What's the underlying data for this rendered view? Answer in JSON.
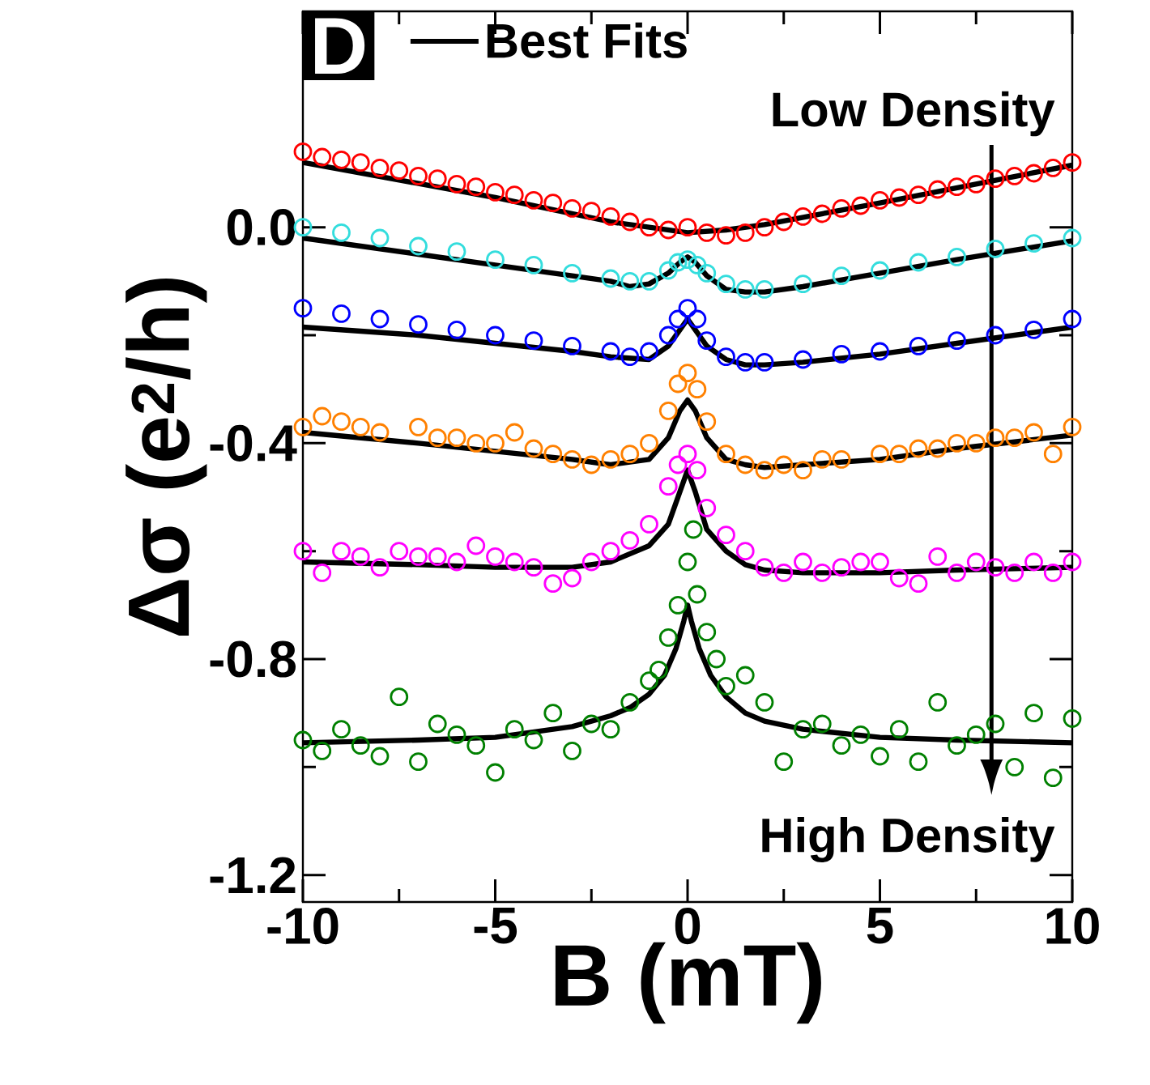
{
  "chart_data": {
    "type": "scatter",
    "xlabel": "B (mT)",
    "ylabel": "Δσ (e$^{2}$/h)",
    "xlim": [
      -10,
      10
    ],
    "ylim": [
      -1.25,
      0.4
    ],
    "xticks": [
      -10,
      -5,
      0,
      5,
      10
    ],
    "yticks": [
      {
        "value": 0,
        "label": "0.0"
      },
      {
        "value": -0.4,
        "label": "-0.4"
      },
      {
        "value": -0.8,
        "label": "-0.8"
      },
      {
        "value": -1.2,
        "label": "-1.2"
      }
    ],
    "legend": "top left",
    "annotations": [
      "D",
      "Low Density",
      "High Density"
    ],
    "series": [
      {
        "marker": "circle",
        "color": "#ff0000",
        "x": [
          -10,
          -9.5,
          -9,
          -8.5,
          -8,
          -7.5,
          -7,
          -6.5,
          -6,
          -5.5,
          -5,
          -4.5,
          -4,
          -3.5,
          -3,
          -2.5,
          -2,
          -1.5,
          -1,
          -0.5,
          0,
          0.5,
          1,
          1.5,
          2,
          2.5,
          3,
          3.5,
          4,
          4.5,
          5,
          5.5,
          6,
          6.5,
          7,
          7.5,
          8,
          8.5,
          9,
          9.5,
          10
        ],
        "values": [
          0.14,
          0.13,
          0.125,
          0.12,
          0.11,
          0.105,
          0.095,
          0.09,
          0.08,
          0.075,
          0.065,
          0.06,
          0.05,
          0.045,
          0.035,
          0.03,
          0.02,
          0.01,
          0.0,
          -0.005,
          0.0,
          -0.01,
          -0.015,
          -0.01,
          0.0,
          0.01,
          0.02,
          0.025,
          0.035,
          0.04,
          0.05,
          0.055,
          0.06,
          0.07,
          0.075,
          0.08,
          0.09,
          0.095,
          0.1,
          0.11,
          0.12
        ]
      },
      {
        "marker": "circle",
        "color": "#33dddd",
        "x": [
          -10,
          -9,
          -8,
          -7,
          -6,
          -5,
          -4,
          -3,
          -2,
          -1.5,
          -1,
          -0.5,
          -0.25,
          0,
          0.25,
          0.5,
          1,
          1.5,
          2,
          3,
          4,
          5,
          6,
          7,
          8,
          9,
          10
        ],
        "values": [
          0.0,
          -0.01,
          -0.02,
          -0.035,
          -0.045,
          -0.06,
          -0.07,
          -0.085,
          -0.095,
          -0.1,
          -0.1,
          -0.08,
          -0.065,
          -0.06,
          -0.07,
          -0.085,
          -0.105,
          -0.115,
          -0.115,
          -0.105,
          -0.09,
          -0.08,
          -0.065,
          -0.055,
          -0.04,
          -0.03,
          -0.02
        ]
      },
      {
        "marker": "circle",
        "color": "#0000ff",
        "x": [
          -10,
          -9,
          -8,
          -7,
          -6,
          -5,
          -4,
          -3,
          -2,
          -1.5,
          -1,
          -0.5,
          -0.25,
          0,
          0.25,
          0.5,
          1,
          1.5,
          2,
          3,
          4,
          5,
          6,
          7,
          8,
          9,
          10
        ],
        "values": [
          -0.15,
          -0.16,
          -0.17,
          -0.18,
          -0.19,
          -0.2,
          -0.21,
          -0.22,
          -0.23,
          -0.24,
          -0.23,
          -0.2,
          -0.17,
          -0.15,
          -0.17,
          -0.21,
          -0.24,
          -0.25,
          -0.25,
          -0.245,
          -0.235,
          -0.23,
          -0.22,
          -0.21,
          -0.2,
          -0.19,
          -0.17
        ]
      },
      {
        "marker": "circle",
        "color": "#ff8000",
        "x": [
          -10,
          -9.5,
          -9,
          -8.5,
          -8,
          -7,
          -6.5,
          -6,
          -5.5,
          -5,
          -4.5,
          -4,
          -3.5,
          -3,
          -2.5,
          -2,
          -1.5,
          -1,
          -0.5,
          -0.25,
          0,
          0.25,
          0.5,
          1,
          1.5,
          2,
          2.5,
          3,
          3.5,
          4,
          5,
          5.5,
          6,
          6.5,
          7,
          7.5,
          8,
          8.5,
          9,
          9.5,
          10
        ],
        "values": [
          -0.37,
          -0.35,
          -0.36,
          -0.37,
          -0.38,
          -0.37,
          -0.39,
          -0.39,
          -0.4,
          -0.4,
          -0.38,
          -0.41,
          -0.42,
          -0.43,
          -0.44,
          -0.43,
          -0.42,
          -0.4,
          -0.34,
          -0.29,
          -0.27,
          -0.3,
          -0.36,
          -0.42,
          -0.44,
          -0.45,
          -0.44,
          -0.45,
          -0.43,
          -0.43,
          -0.42,
          -0.42,
          -0.41,
          -0.41,
          -0.4,
          -0.4,
          -0.39,
          -0.39,
          -0.38,
          -0.42,
          -0.37
        ]
      },
      {
        "marker": "circle",
        "color": "#ff00ff",
        "x": [
          -10,
          -9.5,
          -9,
          -8.5,
          -8,
          -7.5,
          -7,
          -6.5,
          -6,
          -5.5,
          -5,
          -4.5,
          -4,
          -3.5,
          -3,
          -2.5,
          -2,
          -1.5,
          -1,
          -0.5,
          -0.25,
          0,
          0.25,
          0.5,
          1,
          1.5,
          2,
          2.5,
          3,
          3.5,
          4,
          4.5,
          5,
          5.5,
          6,
          6.5,
          7,
          7.5,
          8,
          8.5,
          9,
          9.5,
          10
        ],
        "values": [
          -0.6,
          -0.64,
          -0.6,
          -0.61,
          -0.63,
          -0.6,
          -0.61,
          -0.61,
          -0.62,
          -0.59,
          -0.61,
          -0.62,
          -0.63,
          -0.66,
          -0.65,
          -0.62,
          -0.6,
          -0.58,
          -0.55,
          -0.48,
          -0.44,
          -0.42,
          -0.45,
          -0.52,
          -0.57,
          -0.6,
          -0.63,
          -0.64,
          -0.62,
          -0.64,
          -0.63,
          -0.62,
          -0.62,
          -0.65,
          -0.66,
          -0.61,
          -0.64,
          -0.62,
          -0.63,
          -0.64,
          -0.62,
          -0.64,
          -0.62
        ]
      },
      {
        "marker": "circle",
        "color": "#008000",
        "x": [
          -10,
          -9.5,
          -9,
          -8.5,
          -8,
          -7.5,
          -7,
          -6.5,
          -6,
          -5.5,
          -5,
          -4.5,
          -4,
          -3.5,
          -3,
          -2.5,
          -2,
          -1.5,
          -1,
          -0.75,
          -0.5,
          -0.25,
          0,
          0.15,
          0.25,
          0.5,
          0.75,
          1,
          1.5,
          2,
          2.5,
          3,
          3.5,
          4,
          4.5,
          5,
          5.5,
          6,
          6.5,
          7,
          7.5,
          8,
          8.5,
          9,
          9.5,
          10
        ],
        "values": [
          -0.95,
          -0.97,
          -0.93,
          -0.96,
          -0.98,
          -0.87,
          -0.99,
          -0.92,
          -0.94,
          -0.96,
          -1.01,
          -0.93,
          -0.95,
          -0.9,
          -0.97,
          -0.92,
          -0.93,
          -0.88,
          -0.84,
          -0.82,
          -0.76,
          -0.7,
          -0.62,
          -0.56,
          -0.68,
          -0.75,
          -0.8,
          -0.85,
          -0.83,
          -0.88,
          -0.99,
          -0.93,
          -0.92,
          -0.96,
          -0.94,
          -0.98,
          -0.93,
          -0.99,
          -0.88,
          -0.96,
          -0.94,
          -0.92,
          -1.0,
          -0.9,
          -1.02,
          -0.91
        ]
      },
      {
        "type": "line",
        "marker": "none",
        "name": "Best Fits",
        "color": "#000000",
        "x": [
          -10,
          -5,
          -2,
          -1,
          0,
          1,
          2,
          5,
          10
        ],
        "values": [
          0.12,
          0.055,
          0.01,
          0.0,
          -0.01,
          -0.005,
          0.005,
          0.045,
          0.115
        ]
      },
      {
        "type": "line",
        "marker": "none",
        "color": "#000000",
        "x": [
          -10,
          -7,
          -5,
          -3,
          -2,
          -1.5,
          -1,
          -0.5,
          -0.2,
          0,
          0.2,
          0.5,
          1,
          1.5,
          2,
          3,
          5,
          7,
          10
        ],
        "values": [
          -0.02,
          -0.05,
          -0.07,
          -0.09,
          -0.1,
          -0.11,
          -0.105,
          -0.085,
          -0.065,
          -0.055,
          -0.065,
          -0.09,
          -0.115,
          -0.12,
          -0.12,
          -0.11,
          -0.085,
          -0.06,
          -0.025
        ]
      },
      {
        "type": "line",
        "marker": "none",
        "color": "#000000",
        "x": [
          -10,
          -7,
          -5,
          -3,
          -2,
          -1,
          -0.5,
          -0.2,
          0,
          0.2,
          0.5,
          1,
          1.5,
          2,
          3,
          5,
          7,
          10
        ],
        "values": [
          -0.185,
          -0.2,
          -0.215,
          -0.23,
          -0.24,
          -0.245,
          -0.22,
          -0.19,
          -0.17,
          -0.19,
          -0.22,
          -0.245,
          -0.255,
          -0.255,
          -0.25,
          -0.235,
          -0.215,
          -0.185
        ]
      },
      {
        "type": "line",
        "marker": "none",
        "color": "#000000",
        "x": [
          -10,
          -7,
          -5,
          -3,
          -2,
          -1,
          -0.5,
          -0.2,
          0,
          0.2,
          0.5,
          1,
          1.5,
          2,
          3,
          5,
          7,
          10
        ],
        "values": [
          -0.38,
          -0.4,
          -0.415,
          -0.43,
          -0.44,
          -0.43,
          -0.39,
          -0.34,
          -0.32,
          -0.34,
          -0.39,
          -0.43,
          -0.44,
          -0.445,
          -0.44,
          -0.43,
          -0.41,
          -0.385
        ]
      },
      {
        "type": "line",
        "marker": "none",
        "color": "#000000",
        "x": [
          -10,
          -7,
          -5,
          -3,
          -2,
          -1,
          -0.5,
          -0.2,
          0,
          0.2,
          0.5,
          1,
          1.5,
          2,
          3,
          5,
          7,
          10
        ],
        "values": [
          -0.62,
          -0.625,
          -0.63,
          -0.63,
          -0.62,
          -0.59,
          -0.55,
          -0.49,
          -0.45,
          -0.49,
          -0.56,
          -0.6,
          -0.625,
          -0.635,
          -0.64,
          -0.64,
          -0.635,
          -0.63
        ]
      },
      {
        "type": "line",
        "marker": "none",
        "color": "#000000",
        "x": [
          -10,
          -7,
          -5,
          -3,
          -2,
          -1.5,
          -1,
          -0.6,
          -0.3,
          -0.1,
          0,
          0.1,
          0.3,
          0.6,
          1,
          1.5,
          2,
          3,
          5,
          7,
          10
        ],
        "values": [
          -0.955,
          -0.95,
          -0.945,
          -0.925,
          -0.905,
          -0.89,
          -0.865,
          -0.83,
          -0.78,
          -0.73,
          -0.7,
          -0.73,
          -0.78,
          -0.83,
          -0.87,
          -0.9,
          -0.915,
          -0.93,
          -0.945,
          -0.95,
          -0.955
        ]
      }
    ]
  }
}
